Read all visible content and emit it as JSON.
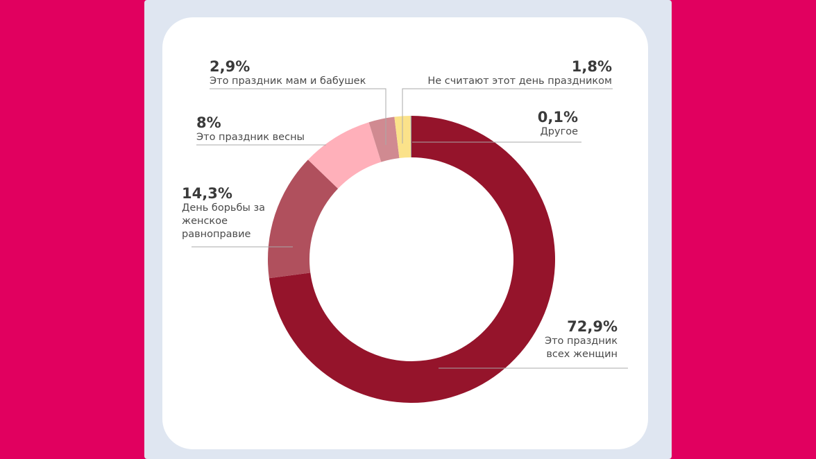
{
  "colors": {
    "page_background": "#e1005f",
    "frame_background": "#dfe6f1",
    "card_background": "#ffffff",
    "leader_line": "#a9a9a9"
  },
  "chart_data": {
    "type": "pie",
    "style": "donut",
    "start_angle_deg": 0,
    "direction": "clockwise",
    "slices": [
      {
        "label": "Это праздник всех женщин",
        "value": 72.9,
        "value_label": "72,9%",
        "color": "#95142b"
      },
      {
        "label": "День борьбы за женское равноправие",
        "value": 14.3,
        "value_label": "14,3%",
        "color": "#b0505d"
      },
      {
        "label": "Это праздник весны",
        "value": 8,
        "value_label": "8%",
        "color": "#ffb0ba"
      },
      {
        "label": "Это праздник мам и бабушек",
        "value": 2.9,
        "value_label": "2,9%",
        "color": "#d08a91"
      },
      {
        "label": "Не считают этот день праздником",
        "value": 1.8,
        "value_label": "1,8%",
        "color": "#fbe28a"
      },
      {
        "label": "Другое",
        "value": 0.1,
        "value_label": "0,1%",
        "color": "#9aa0a6"
      }
    ]
  },
  "labels": {
    "s0": {
      "pct": "72,9%",
      "text": "Это праздник всех женщин"
    },
    "s1": {
      "pct": "14,3%",
      "text": "День борьбы за женское равноправие"
    },
    "s2": {
      "pct": "8%",
      "text": "Это праздник весны"
    },
    "s3": {
      "pct": "2,9%",
      "text": "Это праздник мам и бабушек"
    },
    "s4": {
      "pct": "1,8%",
      "text": "Не считают этот день праздником"
    },
    "s5": {
      "pct": "0,1%",
      "text": "Другое"
    }
  }
}
